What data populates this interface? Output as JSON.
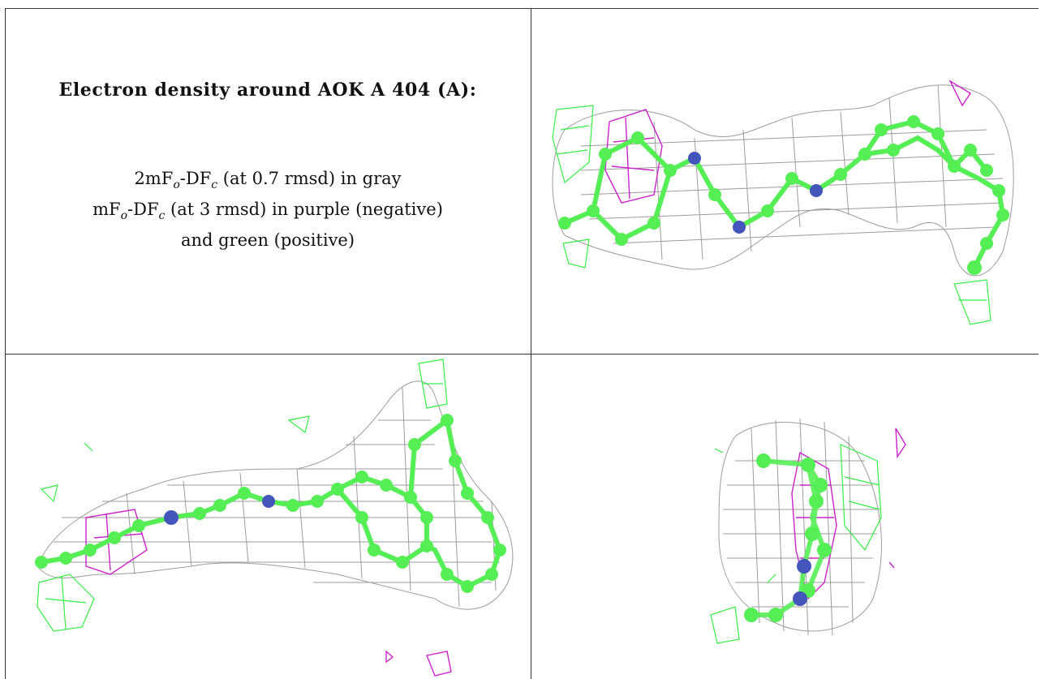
{
  "figure": {
    "title": "Electron density around AOK A 404 (A):",
    "legend": {
      "line1": {
        "a": "2mF",
        "a_sub": "o",
        "b": "-DF",
        "b_sub": "c",
        "c": " (at 0.7 rmsd) in gray"
      },
      "line2": {
        "a": "mF",
        "a_sub": "o",
        "b": "-DF",
        "b_sub": "c",
        "c": " (at 3 rmsd) in purple (negative)"
      },
      "line3": "and green (positive)"
    },
    "colors": {
      "mesh_2fo": "#8a8a8a",
      "mesh_negative": "#cc22cc",
      "mesh_positive": "#33ee44",
      "carbon": "#55ee55",
      "nitrogen": "#4455bb",
      "grid_line": "#333333"
    },
    "panels": [
      {
        "name": "view-1"
      },
      {
        "name": "view-2"
      },
      {
        "name": "view-3"
      }
    ]
  }
}
